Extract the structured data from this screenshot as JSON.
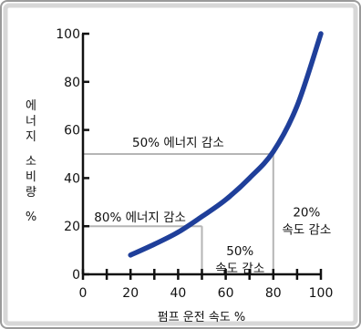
{
  "colors": {
    "curve": "#1f3f9a",
    "axis": "#111111",
    "guide": "#b5b5b5",
    "frame_outer": "#9a9a9a",
    "frame_inner": "#d7d7d7"
  },
  "chart_data": {
    "type": "line",
    "xlabel": "펌프 운전 속도  %",
    "ylabel": [
      "에",
      "너",
      "지",
      "",
      "소",
      "비",
      "량",
      "",
      "%"
    ],
    "xlim": [
      0,
      100
    ],
    "ylim": [
      0,
      100
    ],
    "x_ticks": [
      0,
      20,
      40,
      60,
      80,
      100
    ],
    "y_ticks": [
      0,
      20,
      40,
      60,
      80,
      100
    ],
    "x_minor_ticks": [
      10,
      30,
      50,
      70,
      90
    ],
    "grid": false,
    "series": [
      {
        "x": [
          20,
          30,
          40,
          50,
          60,
          70,
          80,
          90,
          100
        ],
        "y": [
          8,
          12.5,
          17.5,
          24,
          31,
          40,
          51,
          70,
          100
        ]
      }
    ],
    "reference_lines": [
      {
        "speed": 50,
        "energy": 20
      },
      {
        "speed": 80,
        "energy": 50
      }
    ],
    "annotations": [
      {
        "lines": [
          "50% 에너지 감소"
        ],
        "at": [
          40,
          53
        ],
        "anchor": "middle"
      },
      {
        "lines": [
          "80% 에너지 감소"
        ],
        "at": [
          24,
          22
        ],
        "anchor": "middle"
      },
      {
        "lines": [
          "50%",
          "속도 감소"
        ],
        "at": [
          66,
          8
        ],
        "anchor": "middle"
      },
      {
        "lines": [
          "20%",
          "속도 감소"
        ],
        "at": [
          94,
          24
        ],
        "anchor": "middle"
      }
    ]
  }
}
